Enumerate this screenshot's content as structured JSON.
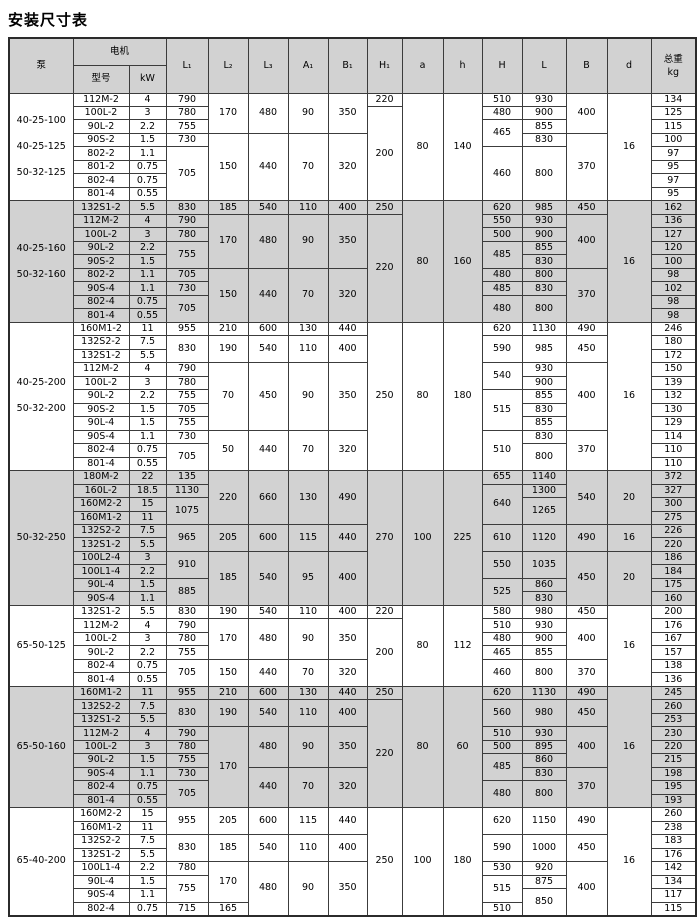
{
  "title": "安装尺寸表",
  "colors": {
    "shaded_row_bg": "#d2d2d2",
    "header_bg": "#d2d2d2",
    "border": "#3c3c3c",
    "text": "#000000",
    "page_bg": "#ffffff"
  },
  "header": {
    "pump": "泵",
    "motor": "电机",
    "model": "型号",
    "kw": "kW",
    "cols": [
      "L₁",
      "L₂",
      "L₃",
      "A₁",
      "B₁",
      "H₁",
      "a",
      "h",
      "H",
      "L",
      "B",
      "d"
    ],
    "weight_line1": "总重",
    "weight_line2": "kg"
  },
  "sections": [
    {
      "pumps": [
        "40-25-100",
        "40-25-125",
        "50-32-125"
      ],
      "shaded": false,
      "rows": 8,
      "cols": {
        "model": [
          "112M-2",
          "100L-2",
          "90L-2",
          "90S-2",
          "802-2",
          "801-2",
          "802-4",
          "801-4"
        ],
        "kw": [
          "4",
          "3",
          "2.2",
          "1.5",
          "1.1",
          "0.75",
          "0.75",
          "0.55"
        ],
        "L1": [
          "790",
          "780",
          "755",
          "730",
          [
            "705",
            4
          ]
        ],
        "L2": [
          [
            "170",
            3
          ],
          [
            "150",
            5
          ]
        ],
        "L3": [
          [
            "480",
            3
          ],
          [
            "440",
            5
          ]
        ],
        "A1": [
          [
            "90",
            3
          ],
          [
            "70",
            5
          ]
        ],
        "B1": [
          [
            "350",
            3
          ],
          [
            "320",
            5
          ]
        ],
        "H1": [
          "220",
          [
            "200",
            7
          ]
        ],
        "a": [
          [
            "80",
            8
          ]
        ],
        "h": [
          [
            "140",
            8
          ]
        ],
        "H": [
          "510",
          "480",
          [
            "465",
            2
          ],
          [
            "460",
            4
          ]
        ],
        "L": [
          "930",
          "900",
          "855",
          "830",
          [
            "800",
            4
          ]
        ],
        "B": [
          [
            "400",
            3
          ],
          [
            "370",
            5
          ]
        ],
        "d": [
          [
            "16",
            8
          ]
        ],
        "kg": [
          "134",
          "125",
          "115",
          "100",
          "97",
          "95",
          "97",
          "95"
        ]
      }
    },
    {
      "pumps": [
        "40-25-160",
        "50-32-160"
      ],
      "shaded": true,
      "rows": 9,
      "cols": {
        "model": [
          "132S1-2",
          "112M-2",
          "100L-2",
          "90L-2",
          "90S-2",
          "802-2",
          "90S-4",
          "802-4",
          "801-4"
        ],
        "kw": [
          "5.5",
          "4",
          "3",
          "2.2",
          "1.5",
          "1.1",
          "1.1",
          "0.75",
          "0.55"
        ],
        "L1": [
          "830",
          "790",
          "780",
          [
            "755",
            2
          ],
          "705",
          "730",
          [
            "705",
            2
          ]
        ],
        "L2": [
          "185",
          [
            "170",
            4
          ],
          [
            "150",
            4
          ]
        ],
        "L3": [
          "540",
          [
            "480",
            4
          ],
          [
            "440",
            4
          ]
        ],
        "A1": [
          "110",
          [
            "90",
            4
          ],
          [
            "70",
            4
          ]
        ],
        "B1": [
          "400",
          [
            "350",
            4
          ],
          [
            "320",
            4
          ]
        ],
        "H1": [
          "250",
          [
            "220",
            8
          ]
        ],
        "a": [
          [
            "80",
            9
          ]
        ],
        "h": [
          [
            "160",
            9
          ]
        ],
        "H": [
          "620",
          "550",
          "500",
          [
            "485",
            2
          ],
          "480",
          "485",
          [
            "480",
            2
          ]
        ],
        "L": [
          "985",
          "930",
          "900",
          "855",
          "830",
          "800",
          "830",
          [
            "800",
            2
          ]
        ],
        "B": [
          "450",
          [
            "400",
            4
          ],
          [
            "370",
            4
          ]
        ],
        "d": [
          [
            "16",
            9
          ]
        ],
        "kg": [
          "162",
          "136",
          "127",
          "120",
          "100",
          "98",
          "102",
          "98",
          "98"
        ]
      }
    },
    {
      "pumps": [
        "40-25-200",
        "50-32-200"
      ],
      "shaded": false,
      "rows": 11,
      "cols": {
        "model": [
          "160M1-2",
          "132S2-2",
          "132S1-2",
          "112M-2",
          "100L-2",
          "90L-2",
          "90S-2",
          "90L-4",
          "90S-4",
          "802-4",
          "801-4"
        ],
        "kw": [
          "11",
          "7.5",
          "5.5",
          "4",
          "3",
          "2.2",
          "1.5",
          "1.5",
          "1.1",
          "0.75",
          "0.55"
        ],
        "L1": [
          "955",
          [
            "830",
            2
          ],
          "790",
          "780",
          "755",
          "705",
          "755",
          "730",
          [
            "705",
            2
          ]
        ],
        "L2": [
          "210",
          [
            "190",
            2
          ],
          [
            "70",
            5
          ],
          [
            "50",
            3
          ]
        ],
        "L3": [
          "600",
          [
            "540",
            2
          ],
          [
            "450",
            5
          ],
          [
            "440",
            3
          ]
        ],
        "A1": [
          "130",
          [
            "110",
            2
          ],
          [
            "90",
            5
          ],
          [
            "70",
            3
          ]
        ],
        "B1": [
          "440",
          [
            "400",
            2
          ],
          [
            "350",
            5
          ],
          [
            "320",
            3
          ]
        ],
        "H1": [
          [
            "250",
            11
          ]
        ],
        "a": [
          [
            "80",
            11
          ]
        ],
        "h": [
          [
            "180",
            11
          ]
        ],
        "H": [
          "620",
          [
            "590",
            2
          ],
          [
            "540",
            2
          ],
          [
            "515",
            3
          ],
          [
            "510",
            3
          ]
        ],
        "L": [
          "1130",
          [
            "985",
            2
          ],
          "930",
          "900",
          "855",
          "830",
          "855",
          "830",
          [
            "800",
            2
          ]
        ],
        "B": [
          "490",
          [
            "450",
            2
          ],
          [
            "400",
            5
          ],
          [
            "370",
            3
          ]
        ],
        "d": [
          [
            "16",
            11
          ]
        ],
        "kg": [
          "246",
          "180",
          "172",
          "150",
          "139",
          "132",
          "130",
          "129",
          "114",
          "110",
          "110"
        ]
      }
    },
    {
      "pumps": [
        "50-32-250"
      ],
      "shaded": true,
      "rows": 10,
      "cols": {
        "model": [
          "180M-2",
          "160L-2",
          "160M2-2",
          "160M1-2",
          "132S2-2",
          "132S1-2",
          "100L2-4",
          "100L1-4",
          "90L-4",
          "90S-4"
        ],
        "kw": [
          "22",
          "18.5",
          "15",
          "11",
          "7.5",
          "5.5",
          "3",
          "2.2",
          "1.5",
          "1.1"
        ],
        "L1": [
          "135",
          "1130",
          [
            "1075",
            2
          ],
          [
            "965",
            2
          ],
          [
            "910",
            2
          ],
          [
            "885",
            2
          ]
        ],
        "L2": [
          [
            "220",
            4
          ],
          [
            "205",
            2
          ],
          [
            "185",
            4
          ]
        ],
        "L3": [
          [
            "660",
            4
          ],
          [
            "600",
            2
          ],
          [
            "540",
            4
          ]
        ],
        "A1": [
          [
            "130",
            4
          ],
          [
            "115",
            2
          ],
          [
            "95",
            4
          ]
        ],
        "B1": [
          [
            "490",
            4
          ],
          [
            "440",
            2
          ],
          [
            "400",
            4
          ]
        ],
        "H1": [
          [
            "270",
            10
          ]
        ],
        "a": [
          [
            "100",
            10
          ]
        ],
        "h": [
          [
            "225",
            10
          ]
        ],
        "H": [
          "655",
          [
            "640",
            3
          ],
          [
            "610",
            2
          ],
          [
            "550",
            2
          ],
          [
            "525",
            2
          ]
        ],
        "L": [
          "1140",
          "1300",
          [
            "1265",
            2
          ],
          [
            "1120",
            2
          ],
          [
            "1035",
            2
          ],
          "860",
          "830"
        ],
        "B": [
          [
            "540",
            4
          ],
          [
            "490",
            2
          ],
          [
            "450",
            4
          ]
        ],
        "d": [
          [
            "20",
            4
          ],
          [
            "16",
            2
          ],
          [
            "20",
            4
          ]
        ],
        "kg": [
          "372",
          "327",
          "300",
          "275",
          "226",
          "220",
          "186",
          "184",
          "175",
          "160"
        ]
      }
    },
    {
      "pumps": [
        "65-50-125"
      ],
      "shaded": false,
      "rows": 6,
      "cols": {
        "model": [
          "132S1-2",
          "112M-2",
          "100L-2",
          "90L-2",
          "802-4",
          "801-4"
        ],
        "kw": [
          "5.5",
          "4",
          "3",
          "2.2",
          "0.75",
          "0.55"
        ],
        "L1": [
          "830",
          "790",
          "780",
          "755",
          [
            "705",
            2
          ]
        ],
        "L2": [
          "190",
          [
            "170",
            3
          ],
          [
            "150",
            2
          ]
        ],
        "L3": [
          "540",
          [
            "480",
            3
          ],
          [
            "440",
            2
          ]
        ],
        "A1": [
          "110",
          [
            "90",
            3
          ],
          [
            "70",
            2
          ]
        ],
        "B1": [
          "400",
          [
            "350",
            3
          ],
          [
            "320",
            2
          ]
        ],
        "H1": [
          "220",
          [
            "200",
            5
          ]
        ],
        "a": [
          [
            "80",
            6
          ]
        ],
        "h": [
          [
            "112",
            6
          ]
        ],
        "H": [
          "580",
          "510",
          "480",
          "465",
          [
            "460",
            2
          ]
        ],
        "L": [
          "980",
          "930",
          "900",
          "855",
          [
            "800",
            2
          ]
        ],
        "B": [
          "450",
          [
            "400",
            3
          ],
          [
            "370",
            2
          ]
        ],
        "d": [
          [
            "16",
            6
          ]
        ],
        "kg": [
          "200",
          "176",
          "167",
          "157",
          "138",
          "136"
        ]
      }
    },
    {
      "pumps": [
        "65-50-160"
      ],
      "shaded": true,
      "rows": 9,
      "cols": {
        "model": [
          "160M1-2",
          "132S2-2",
          "132S1-2",
          "112M-2",
          "100L-2",
          "90L-2",
          "90S-4",
          "802-4",
          "801-4"
        ],
        "kw": [
          "11",
          "7.5",
          "5.5",
          "4",
          "3",
          "1.5",
          "1.1",
          "0.75",
          "0.55"
        ],
        "L1": [
          "955",
          [
            "830",
            2
          ],
          "790",
          "780",
          "755",
          "730",
          [
            "705",
            2
          ]
        ],
        "L2": [
          "210",
          [
            "190",
            2
          ],
          [
            "170",
            6
          ]
        ],
        "L3": [
          "600",
          [
            "540",
            2
          ],
          [
            "480",
            3
          ],
          [
            "440",
            3
          ]
        ],
        "A1": [
          "130",
          [
            "110",
            2
          ],
          [
            "90",
            3
          ],
          [
            "70",
            3
          ]
        ],
        "B1": [
          "440",
          [
            "400",
            2
          ],
          [
            "350",
            3
          ],
          [
            "320",
            3
          ]
        ],
        "H1": [
          "250",
          [
            "220",
            8
          ]
        ],
        "a": [
          [
            "80",
            9
          ]
        ],
        "h": [
          [
            "60",
            9
          ]
        ],
        "H": [
          "620",
          [
            "560",
            2
          ],
          "510",
          "500",
          [
            "485",
            2
          ],
          [
            "480",
            2
          ]
        ],
        "L": [
          "1130",
          [
            "980",
            2
          ],
          "930",
          "895",
          "860",
          "830",
          [
            "800",
            2
          ]
        ],
        "B": [
          "490",
          [
            "450",
            2
          ],
          [
            "400",
            3
          ],
          [
            "370",
            3
          ]
        ],
        "d": [
          [
            "16",
            9
          ]
        ],
        "kg": [
          "245",
          "260",
          "253",
          "230",
          "220",
          "215",
          "198",
          "195",
          "193"
        ]
      }
    },
    {
      "pumps": [
        "65-40-200"
      ],
      "shaded": false,
      "rows": 8,
      "cols": {
        "model": [
          "160M2-2",
          "160M1-2",
          "132S2-2",
          "132S1-2",
          "100L1-4",
          "90L-4",
          "90S-4",
          "802-4"
        ],
        "kw": [
          "15",
          "11",
          "7.5",
          "5.5",
          "2.2",
          "1.5",
          "1.1",
          "0.75"
        ],
        "L1": [
          [
            "955",
            2
          ],
          [
            "830",
            2
          ],
          "780",
          [
            "755",
            2
          ],
          "715"
        ],
        "L2": [
          [
            "205",
            2
          ],
          [
            "185",
            2
          ],
          [
            "170",
            3
          ],
          "165"
        ],
        "L3": [
          [
            "600",
            2
          ],
          [
            "540",
            2
          ],
          [
            "480",
            4
          ]
        ],
        "A1": [
          [
            "115",
            2
          ],
          [
            "110",
            2
          ],
          [
            "90",
            4
          ]
        ],
        "B1": [
          [
            "440",
            2
          ],
          [
            "400",
            2
          ],
          [
            "350",
            4
          ]
        ],
        "H1": [
          [
            "250",
            8
          ]
        ],
        "a": [
          [
            "100",
            8
          ]
        ],
        "h": [
          [
            "180",
            8
          ]
        ],
        "H": [
          [
            "620",
            2
          ],
          [
            "590",
            2
          ],
          "530",
          [
            "515",
            2
          ],
          "510"
        ],
        "L": [
          [
            "1150",
            2
          ],
          [
            "1000",
            2
          ],
          "920",
          "875",
          [
            "850",
            2
          ]
        ],
        "B": [
          [
            "490",
            2
          ],
          [
            "450",
            2
          ],
          [
            "400",
            4
          ]
        ],
        "d": [
          [
            "16",
            8
          ]
        ],
        "kg": [
          "260",
          "238",
          "183",
          "176",
          "142",
          "134",
          "117",
          "115"
        ]
      }
    }
  ]
}
